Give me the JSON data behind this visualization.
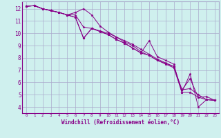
{
  "xlabel": "Windchill (Refroidissement éolien,°C)",
  "background_color": "#cff0ee",
  "grid_color": "#aaaacc",
  "line_color": "#880088",
  "xlim": [
    -0.5,
    23.5
  ],
  "ylim": [
    3.5,
    12.6
  ],
  "xticks": [
    0,
    1,
    2,
    3,
    4,
    5,
    6,
    7,
    8,
    9,
    10,
    11,
    12,
    13,
    14,
    15,
    16,
    17,
    18,
    19,
    20,
    21,
    22,
    23
  ],
  "yticks": [
    4,
    5,
    6,
    7,
    8,
    9,
    10,
    11,
    12
  ],
  "series": [
    [
      12.2,
      12.25,
      12.0,
      11.85,
      11.7,
      11.5,
      11.3,
      9.6,
      10.4,
      10.15,
      9.9,
      9.5,
      9.2,
      8.8,
      8.4,
      9.4,
      8.1,
      7.8,
      7.5,
      5.2,
      6.7,
      4.0,
      4.6,
      4.55
    ],
    [
      12.2,
      12.25,
      12.0,
      11.85,
      11.7,
      11.5,
      11.7,
      12.0,
      11.5,
      10.6,
      10.1,
      9.7,
      9.3,
      9.0,
      8.5,
      8.2,
      7.8,
      7.5,
      7.2,
      5.2,
      5.2,
      4.8,
      4.6,
      4.55
    ],
    [
      12.2,
      12.25,
      12.0,
      11.85,
      11.7,
      11.5,
      11.3,
      9.6,
      10.4,
      10.15,
      9.9,
      9.5,
      9.2,
      8.8,
      8.4,
      8.2,
      7.8,
      7.55,
      7.3,
      5.4,
      6.3,
      4.8,
      4.85,
      4.55
    ],
    [
      12.2,
      12.25,
      12.0,
      11.85,
      11.7,
      11.5,
      11.5,
      10.5,
      10.4,
      10.2,
      10.0,
      9.7,
      9.4,
      9.1,
      8.7,
      8.3,
      7.9,
      7.6,
      7.3,
      5.4,
      5.5,
      5.0,
      4.6,
      4.55
    ]
  ]
}
